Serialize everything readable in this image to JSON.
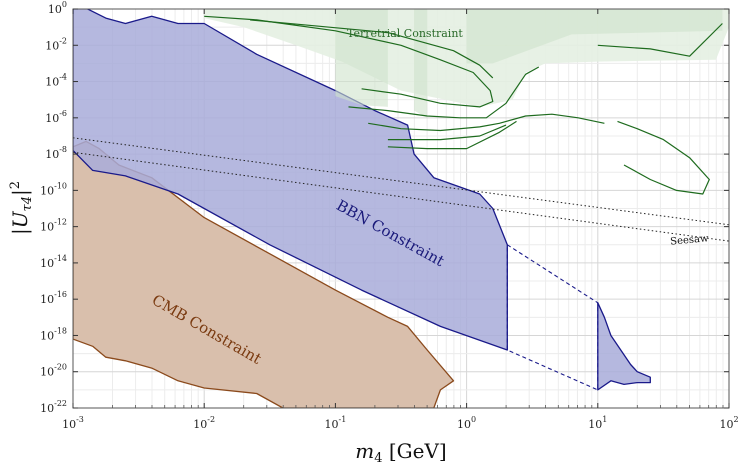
{
  "chart_data": {
    "type": "area",
    "xlabel": "m_4 [GeV]",
    "ylabel": "|U_τ4|^2",
    "xscale": "log",
    "yscale": "log",
    "xlim": [
      0.001,
      100
    ],
    "ylim": [
      1e-22,
      1
    ],
    "x_ticks": [
      -3,
      -2,
      -1,
      0,
      1,
      2
    ],
    "y_ticks": [
      0,
      -2,
      -4,
      -6,
      -8,
      -10,
      -12,
      -14,
      -16,
      -18,
      -20,
      -22
    ],
    "grid": true,
    "colors": {
      "bbn_fill": "#a8abd9",
      "bbn_line": "#1a1a8a",
      "cmb_fill": "#d9bfac",
      "cmb_line": "#8b4a1c",
      "terr_fill": "#e4efe2",
      "terr_fill_dark": "#cfe2cc",
      "terr_line": "#1e6b1e",
      "seesaw_line": "#222222"
    },
    "regions": [
      {
        "name": "BBN Constraint",
        "label": "BBN Constraint",
        "log_points": [
          [
            -3,
            0.4
          ],
          [
            -2.75,
            -0.5
          ],
          [
            -2.6,
            -0.8
          ],
          [
            -2.4,
            -0.4
          ],
          [
            -2.2,
            -0.8
          ],
          [
            -2.0,
            -0.8
          ],
          [
            -1.6,
            -2.5
          ],
          [
            -1.0,
            -4.5
          ],
          [
            -0.7,
            -5.6
          ],
          [
            -0.45,
            -6.4
          ],
          [
            -0.4,
            -8.0
          ],
          [
            -0.25,
            -9.3
          ],
          [
            0.1,
            -10.2
          ],
          [
            0.2,
            -11.0
          ],
          [
            0.31,
            -13.0
          ],
          [
            0.31,
            -18.8
          ],
          [
            -0.2,
            -17.5
          ],
          [
            -0.8,
            -15.5
          ],
          [
            -1.5,
            -13.0
          ],
          [
            -2.2,
            -10.2
          ],
          [
            -2.6,
            -9.2
          ],
          [
            -2.85,
            -8.9
          ],
          [
            -3,
            -7.8
          ]
        ]
      },
      {
        "name": "BBN Constraint high mass",
        "log_points": [
          [
            1.0,
            -16.2
          ],
          [
            1.05,
            -17.0
          ],
          [
            1.1,
            -18.0
          ],
          [
            1.25,
            -19.6
          ],
          [
            1.3,
            -20.0
          ],
          [
            1.4,
            -20.3
          ],
          [
            1.4,
            -20.6
          ],
          [
            1.3,
            -20.6
          ],
          [
            1.2,
            -20.7
          ],
          [
            1.1,
            -20.5
          ],
          [
            1.0,
            -21.0
          ]
        ]
      },
      {
        "name": "BBN Constraint dashed gap",
        "log_points": [
          [
            0.31,
            -13.0
          ],
          [
            1.0,
            -16.2
          ],
          [
            1.0,
            -21.0
          ],
          [
            0.31,
            -18.8
          ]
        ]
      },
      {
        "name": "CMB Constraint",
        "label": "CMB Constraint",
        "log_points": [
          [
            -3,
            -7.6
          ],
          [
            -2.9,
            -7.3
          ],
          [
            -2.8,
            -7.7
          ],
          [
            -2.65,
            -8.6
          ],
          [
            -2.4,
            -9.3
          ],
          [
            -2.0,
            -11.5
          ],
          [
            -1.5,
            -13.5
          ],
          [
            -1.0,
            -15.5
          ],
          [
            -0.6,
            -17.0
          ],
          [
            -0.45,
            -17.5
          ],
          [
            -0.3,
            -18.8
          ],
          [
            -0.1,
            -20.5
          ],
          [
            -0.2,
            -21.0
          ],
          [
            -0.25,
            -22
          ],
          [
            -1.4,
            -22
          ],
          [
            -1.6,
            -21.2
          ],
          [
            -2.0,
            -20.9
          ],
          [
            -2.2,
            -20.5
          ],
          [
            -2.4,
            -19.8
          ],
          [
            -2.6,
            -19.4
          ],
          [
            -2.75,
            -19.2
          ],
          [
            -2.85,
            -18.6
          ],
          [
            -3,
            -18.2
          ]
        ]
      }
    ],
    "terrestrial": {
      "label": "Terretrial Constraint",
      "bands": [
        {
          "log_points": [
            [
              -2.0,
              0
            ],
            [
              2.0,
              0
            ],
            [
              2.0,
              -1.0
            ],
            [
              1.9,
              -2.8
            ],
            [
              1.0,
              -2.9
            ],
            [
              0.6,
              -3.0
            ],
            [
              0.45,
              -3.5
            ],
            [
              0.35,
              -5.0
            ],
            [
              0.1,
              -5.4
            ],
            [
              -0.5,
              -4.5
            ],
            [
              -0.95,
              -2.9
            ],
            [
              -1.3,
              -2.0
            ],
            [
              -1.7,
              -1.0
            ],
            [
              -2.0,
              -0.5
            ]
          ]
        },
        {
          "log_points": [
            [
              -1.0,
              0
            ],
            [
              -0.6,
              0
            ],
            [
              -0.6,
              -5.4
            ],
            [
              -0.8,
              -5.3
            ],
            [
              -1.0,
              -4.8
            ]
          ]
        },
        {
          "log_points": [
            [
              -0.4,
              0
            ],
            [
              -0.3,
              0
            ],
            [
              -0.3,
              -6.0
            ],
            [
              -0.4,
              -5.6
            ]
          ]
        },
        {
          "log_points": [
            [
              0.0,
              0
            ],
            [
              1.95,
              0
            ],
            [
              1.95,
              -1.2
            ],
            [
              0.8,
              -1.4
            ],
            [
              0.2,
              -3.0
            ],
            [
              0.0,
              -3.0
            ]
          ]
        }
      ],
      "curves": [
        [
          [
            -2.0,
            -0.4
          ],
          [
            -1.6,
            -0.6
          ],
          [
            -1.0,
            -1.2
          ],
          [
            -0.5,
            -2.0
          ],
          [
            -0.2,
            -2.8
          ],
          [
            0.05,
            -3.5
          ],
          [
            0.18,
            -4.5
          ],
          [
            0.2,
            -5.1
          ],
          [
            0.1,
            -5.4
          ],
          [
            -0.2,
            -5.2
          ],
          [
            -0.5,
            -4.7
          ],
          [
            -0.8,
            -4.4
          ]
        ],
        [
          [
            -1.65,
            -0.6
          ],
          [
            -1.2,
            -0.9
          ],
          [
            -0.6,
            -1.3
          ],
          [
            -0.1,
            -2.3
          ],
          [
            0.1,
            -3.1
          ],
          [
            0.2,
            -3.8
          ]
        ],
        [
          [
            -0.9,
            -5.4
          ],
          [
            -0.6,
            -5.6
          ],
          [
            -0.3,
            -5.9
          ],
          [
            -0.05,
            -6.0
          ],
          [
            0.15,
            -6.0
          ],
          [
            0.3,
            -5.2
          ],
          [
            0.45,
            -3.6
          ],
          [
            0.55,
            -3.2
          ]
        ],
        [
          [
            -0.75,
            -6.3
          ],
          [
            -0.5,
            -6.6
          ],
          [
            -0.2,
            -6.7
          ],
          [
            0.1,
            -6.5
          ],
          [
            0.25,
            -6.3
          ],
          [
            0.45,
            -5.9
          ],
          [
            0.65,
            -5.8
          ],
          [
            0.85,
            -6.0
          ],
          [
            1.05,
            -6.3
          ]
        ],
        [
          [
            -0.6,
            -7.2
          ],
          [
            -0.2,
            -7.2
          ],
          [
            0.1,
            -7.0
          ],
          [
            0.3,
            -6.4
          ]
        ],
        [
          [
            -0.6,
            -7.6
          ],
          [
            -0.3,
            -7.7
          ],
          [
            0.0,
            -7.7
          ],
          [
            0.25,
            -6.8
          ],
          [
            0.38,
            -6.2
          ]
        ],
        [
          [
            1.0,
            -2.0
          ],
          [
            1.4,
            -2.2
          ],
          [
            1.7,
            -2.6
          ],
          [
            1.95,
            -0.8
          ]
        ],
        [
          [
            1.15,
            -6.2
          ],
          [
            1.3,
            -6.6
          ],
          [
            1.5,
            -7.2
          ],
          [
            1.7,
            -8.2
          ],
          [
            1.85,
            -9.4
          ],
          [
            1.8,
            -10.2
          ],
          [
            1.6,
            -10.0
          ],
          [
            1.4,
            -9.4
          ],
          [
            1.2,
            -8.6
          ]
        ]
      ]
    },
    "seesaw": {
      "label": "Seesaw",
      "lines": [
        [
          [
            -3,
            -7.1
          ],
          [
            2,
            -11.9
          ]
        ],
        [
          [
            -3,
            -7.9
          ],
          [
            2,
            -12.8
          ]
        ]
      ]
    }
  }
}
